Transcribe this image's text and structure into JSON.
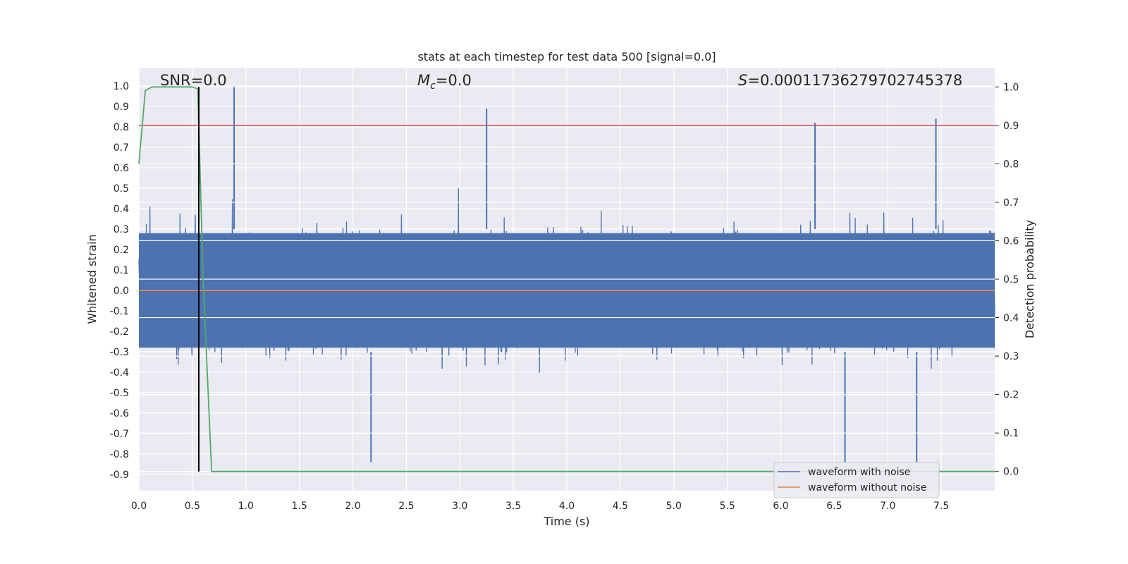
{
  "chart_data": {
    "type": "line",
    "title": "stats at each timestep for test data 500 [signal=0.0]",
    "xlabel": "Time (s)",
    "ylabel": "Whitened strain",
    "y2label": "Detection probability",
    "xlim": [
      0.0,
      8.0
    ],
    "ylim": [
      -0.98,
      1.09
    ],
    "y2lim": [
      -0.05,
      1.05
    ],
    "x_ticks": [
      "0.0",
      "0.5",
      "1.0",
      "1.5",
      "2.0",
      "2.5",
      "3.0",
      "3.5",
      "4.0",
      "4.5",
      "5.0",
      "5.5",
      "6.0",
      "6.5",
      "7.0",
      "7.5"
    ],
    "y_ticks": [
      "1.0",
      "0.9",
      "0.8",
      "0.7",
      "0.6",
      "0.5",
      "0.4",
      "0.3",
      "0.2",
      "0.1",
      "0.0",
      "-0.1",
      "-0.2",
      "-0.3",
      "-0.4",
      "-0.5",
      "-0.6",
      "-0.7",
      "-0.8",
      "-0.9"
    ],
    "y2_ticks": [
      "1.0",
      "0.9",
      "0.8",
      "0.7",
      "0.6",
      "0.5",
      "0.4",
      "0.3",
      "0.2",
      "0.1",
      "0.0"
    ],
    "grid": true,
    "legend_position": "bottom-right",
    "annotations": {
      "snr": "SNR=0.0",
      "mc_symbol": "M",
      "mc_sub": "c",
      "mc_value": "=0.0",
      "s_symbol": "S",
      "s_value": "=0.00011736279702745378"
    },
    "series": [
      {
        "name": "waveform with noise",
        "axis": "left",
        "color": "#4c72b0",
        "description_values": {
          "typical_band": [
            -0.4,
            0.4
          ],
          "peaks_x": [
            0.89,
            3.25,
            6.32,
            7.45
          ],
          "peaks_y": [
            1.0,
            0.89,
            0.82,
            0.84
          ],
          "troughs_x": [
            2.17,
            6.6,
            7.27
          ],
          "troughs_y": [
            -0.84,
            -0.84,
            -0.84
          ]
        }
      },
      {
        "name": "waveform without noise",
        "axis": "left",
        "color": "#dd8452",
        "x": [
          0.0,
          8.0
        ],
        "y": [
          0.0,
          0.0
        ]
      },
      {
        "axis": "right",
        "color": "#55a868",
        "x": [
          0.0,
          0.06,
          0.12,
          0.2,
          0.3,
          0.4,
          0.5,
          0.55,
          0.6,
          0.68,
          0.75,
          1.0,
          2.0,
          4.0,
          6.0,
          8.0
        ],
        "y": [
          0.8,
          0.99,
          1.0,
          1.0,
          1.0,
          1.0,
          1.0,
          0.995,
          0.5,
          0.0,
          0.0,
          0.0,
          0.0,
          0.0,
          0.0,
          0.0
        ]
      }
    ],
    "threshold_right": 0.9,
    "threshold_color": "#c44e52",
    "vline_x": 0.56,
    "vline_color": "#000000"
  }
}
